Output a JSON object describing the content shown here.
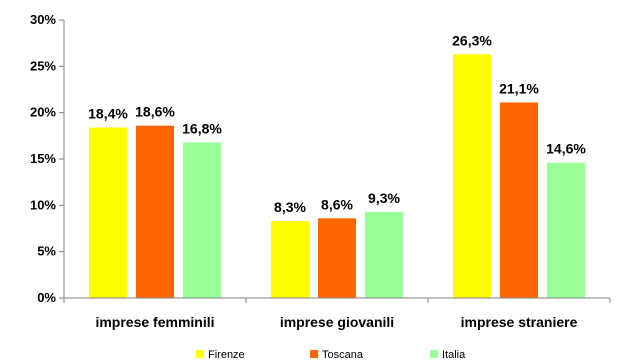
{
  "chart_data": {
    "type": "bar",
    "categories": [
      "imprese femminili",
      "imprese giovanili",
      "imprese straniere"
    ],
    "series": [
      {
        "name": "Firenze",
        "values": [
          18.4,
          8.3,
          26.3
        ],
        "labels": [
          "18,4%",
          "8,3%",
          "26,3%"
        ],
        "color": "#FFFF00"
      },
      {
        "name": "Toscana",
        "values": [
          18.6,
          8.6,
          21.1
        ],
        "labels": [
          "18,6%",
          "8,6%",
          "21,1%"
        ],
        "color": "#FF6600"
      },
      {
        "name": "Italia",
        "values": [
          16.8,
          9.3,
          14.6
        ],
        "labels": [
          "16,8%",
          "9,3%",
          "14,6%"
        ],
        "color": "#99FF99"
      }
    ],
    "yticks": [
      0,
      5,
      10,
      15,
      20,
      25,
      30
    ],
    "ytick_labels": [
      "0%",
      "5%",
      "10%",
      "15%",
      "20%",
      "25%",
      "30%"
    ],
    "ylim": [
      0,
      30
    ],
    "grid": false,
    "legend": "bottom"
  }
}
